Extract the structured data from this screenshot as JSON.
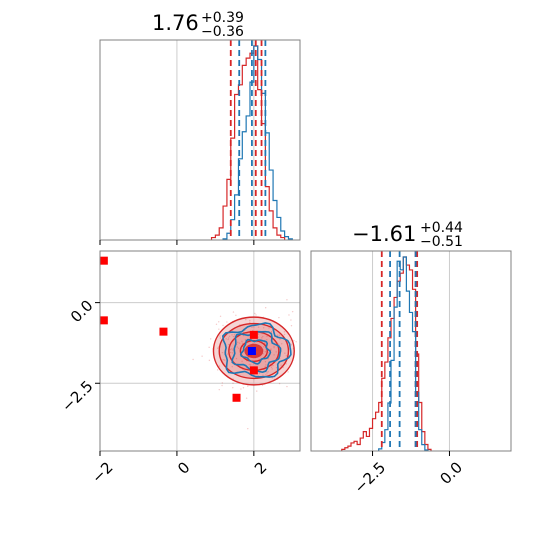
{
  "colors": {
    "red": "#d62728",
    "blue": "#1f77b4",
    "red_fill": "#e8a0a0",
    "marker_red": "#ff0000",
    "marker_blue": "#0000ff",
    "grid": "#cccccc",
    "frame": "#808080"
  },
  "chart_data": [
    {
      "panel": "marginal-1",
      "type": "histogram",
      "title_value": "1.76",
      "title_plus": "+0.39",
      "title_minus": "−0.36",
      "xlim": [
        -2,
        3.2
      ],
      "grid": true,
      "quantiles_red": [
        1.4,
        2.05,
        2.2
      ],
      "quantiles_blue": [
        1.62,
        1.95,
        2.3
      ],
      "series": [
        {
          "color": "red",
          "bins": [
            0.9,
            1.0,
            1.1,
            1.2,
            1.3,
            1.4,
            1.5,
            1.6,
            1.7,
            1.8,
            1.9,
            2.0,
            2.1,
            2.2,
            2.3,
            2.4,
            2.5,
            2.6,
            2.7,
            2.8
          ],
          "counts": [
            1,
            2,
            5,
            14,
            25,
            42,
            60,
            64,
            72,
            75,
            77,
            80,
            62,
            48,
            22,
            12,
            5,
            2,
            1
          ]
        },
        {
          "color": "blue",
          "bins": [
            1.2,
            1.3,
            1.4,
            1.5,
            1.6,
            1.7,
            1.8,
            1.9,
            2.0,
            2.1,
            2.2,
            2.3,
            2.4,
            2.5,
            2.6,
            2.7,
            2.8,
            2.9,
            3.0
          ],
          "counts": [
            1,
            6,
            18,
            40,
            72,
            96,
            110,
            140,
            172,
            160,
            130,
            95,
            62,
            35,
            20,
            8,
            3,
            1
          ]
        }
      ]
    },
    {
      "panel": "marginal-2",
      "type": "histogram",
      "title_value": "−1.61",
      "title_plus": "+0.44",
      "title_minus": "−0.51",
      "xlim": [
        -4.5,
        2.0
      ],
      "xticks": [
        -2.5,
        0.0
      ],
      "xtick_labels": [
        "−2.5",
        "0.0"
      ],
      "grid": true,
      "quantiles_red": [
        -2.2,
        -1.1,
        -1.05
      ],
      "quantiles_blue": [
        -1.93,
        -1.62,
        -1.1
      ],
      "series": [
        {
          "color": "red",
          "bins": [
            -3.5,
            -3.4,
            -3.3,
            -3.2,
            -3.1,
            -3.0,
            -2.9,
            -2.8,
            -2.7,
            -2.6,
            -2.5,
            -2.4,
            -2.3,
            -2.2,
            -2.1,
            -2.0,
            -1.9,
            -1.8,
            -1.7,
            -1.6,
            -1.5,
            -1.4,
            -1.3,
            -1.2,
            -1.1,
            -1.0,
            -0.9,
            -0.8,
            -0.7,
            -0.6
          ],
          "counts": [
            1,
            2,
            3,
            5,
            6,
            4,
            8,
            12,
            9,
            14,
            20,
            24,
            30,
            45,
            55,
            70,
            82,
            95,
            105,
            110,
            120,
            115,
            112,
            100,
            60,
            30,
            12,
            4,
            1
          ]
        },
        {
          "color": "blue",
          "bins": [
            -2.3,
            -2.2,
            -2.1,
            -2.0,
            -1.9,
            -1.8,
            -1.7,
            -1.6,
            -1.5,
            -1.4,
            -1.3,
            -1.2,
            -1.1,
            -1.0,
            -0.9,
            -0.8,
            -0.7
          ],
          "counts": [
            2,
            8,
            20,
            45,
            85,
            135,
            178,
            170,
            182,
            150,
            130,
            112,
            55,
            20,
            6,
            1
          ]
        }
      ]
    },
    {
      "panel": "joint",
      "type": "scatter-contour",
      "xlim": [
        -2,
        3.2
      ],
      "ylim": [
        -4.6,
        1.6
      ],
      "xticks": [
        -2,
        0,
        2
      ],
      "xtick_labels": [
        "−2",
        "0",
        "2"
      ],
      "yticks": [
        -2.5,
        0.0
      ],
      "ytick_labels": [
        "−2.5",
        "0.0"
      ],
      "grid": true,
      "red_density_center": [
        2.0,
        -1.5
      ],
      "red_contour_radii": [
        [
          0.35,
          0.32
        ],
        [
          0.65,
          0.6
        ],
        [
          0.9,
          0.85
        ],
        [
          1.05,
          1.05
        ]
      ],
      "blue_density_center": [
        2.05,
        -1.5
      ],
      "blue_contour_radii": [
        [
          0.35,
          0.35
        ],
        [
          0.6,
          0.6
        ],
        [
          0.85,
          0.8
        ]
      ],
      "red_points": [
        [
          -1.9,
          1.3
        ],
        [
          -1.9,
          -0.55
        ],
        [
          -0.35,
          -0.9
        ],
        [
          1.55,
          -2.95
        ],
        [
          2.0,
          -1.0
        ],
        [
          2.0,
          -2.1
        ]
      ],
      "blue_points": [
        [
          1.95,
          -1.5
        ]
      ]
    }
  ]
}
